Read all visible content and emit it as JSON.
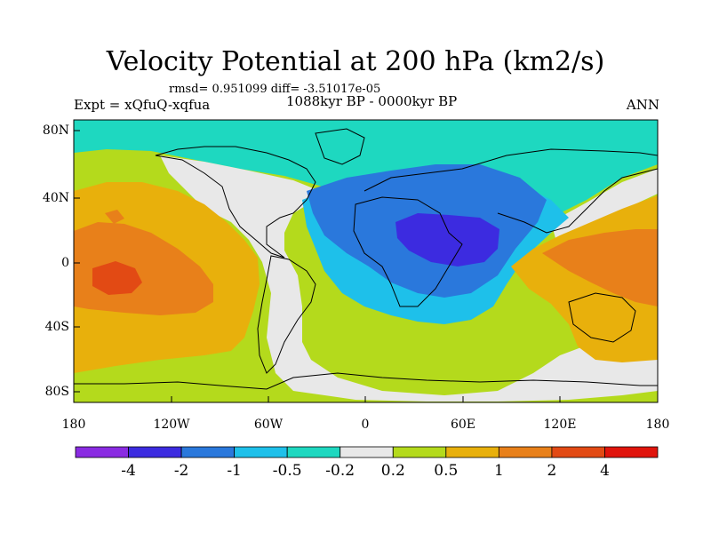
{
  "title": "Velocity Potential at 200 hPa (km2/s)",
  "stats_text": "rmsd= 0.951099 diff= -3.51017e-05",
  "experiment": "Expt = xQfuQ-xqfua",
  "period": "1088kyr BP - 0000kyr BP",
  "season": "ANN",
  "axes": {
    "lat_ticks": [
      "80N",
      "40N",
      "0",
      "40S",
      "80S"
    ],
    "lon_ticks": [
      "180",
      "120W",
      "60W",
      "0",
      "60E",
      "120E",
      "180"
    ]
  },
  "colorbar": {
    "labels": [
      "-4",
      "-2",
      "-1",
      "-0.5",
      "-0.2",
      "0.2",
      "0.5",
      "1",
      "2",
      "4"
    ],
    "colors": [
      "#8a2be2",
      "#3c2be0",
      "#2a78dc",
      "#1ec0ea",
      "#1ed8c0",
      "#e8e8e8",
      "#b4da1c",
      "#e8b00c",
      "#e8801a",
      "#e24a14",
      "#e0140c"
    ]
  },
  "map_colors": {
    "ocean_bg": "#b4da1c",
    "neutral": "#e8e8e8",
    "teal": "#1ed8c0",
    "cyan": "#1ec0ea",
    "blue": "#2a78dc",
    "deep_blue": "#3c2be0",
    "orange_yellow": "#e8b00c",
    "orange": "#e8801a",
    "red_orange": "#e24a14",
    "coast": "#000000"
  }
}
